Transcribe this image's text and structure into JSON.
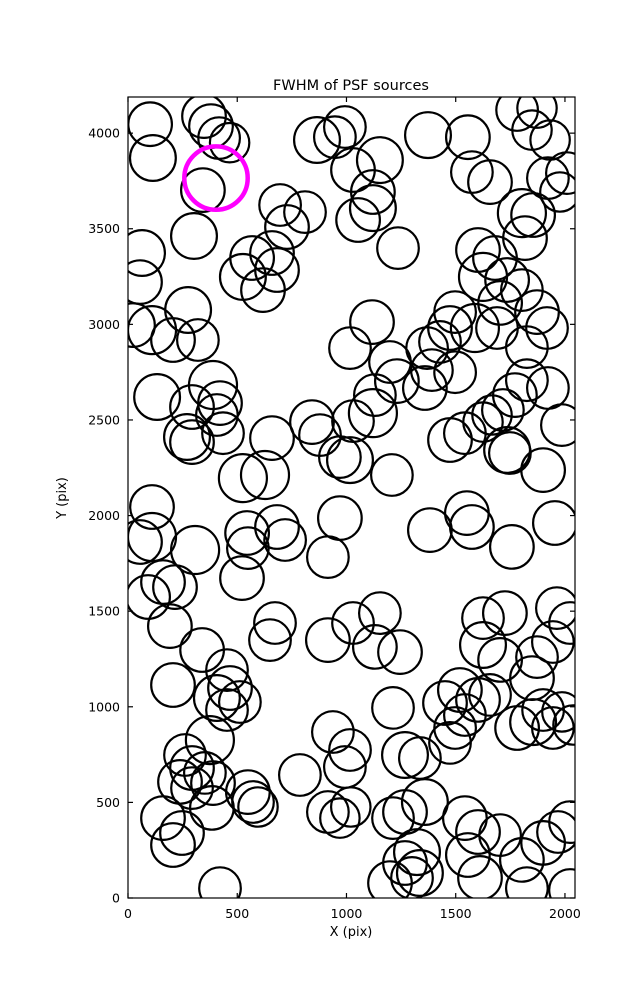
{
  "figure": {
    "background": "#ffffff",
    "title": "FWHM of PSF sources"
  },
  "chart_data": {
    "type": "scatter",
    "marker": "open-circle",
    "title": "FWHM of PSF sources",
    "xlabel": "X (pix)",
    "ylabel": "Y (pix)",
    "xlim": [
      0,
      2046
    ],
    "ylim": [
      0,
      4189
    ],
    "xticks": [
      0,
      500,
      1000,
      1500,
      2000
    ],
    "yticks": [
      0,
      500,
      1000,
      1500,
      2000,
      2500,
      3000,
      3500,
      4000
    ],
    "grid": false,
    "legend": "none",
    "circle_color": "#000000",
    "highlight_color": "#ff00ff",
    "note": "each point is [x_pix, y_pix, radius_in_x_units]; open circles sized by source FWHM",
    "highlight": {
      "x": 403,
      "y": 3765,
      "r": 145,
      "color": "#ff00ff"
    },
    "points": [
      [
        101,
        4047,
        100
      ],
      [
        114,
        3870,
        105
      ],
      [
        348,
        4089,
        100
      ],
      [
        380,
        4037,
        100
      ],
      [
        417,
        3974,
        95
      ],
      [
        465,
        3950,
        90
      ],
      [
        343,
        3702,
        100
      ],
      [
        302,
        3462,
        105
      ],
      [
        64,
        3373,
        105
      ],
      [
        55,
        3221,
        100
      ],
      [
        275,
        3075,
        105
      ],
      [
        110,
        2970,
        110
      ],
      [
        23,
        2996,
        100
      ],
      [
        206,
        2918,
        100
      ],
      [
        320,
        2918,
        95
      ],
      [
        526,
        3248,
        105
      ],
      [
        568,
        3347,
        100
      ],
      [
        659,
        3373,
        100
      ],
      [
        682,
        3284,
        100
      ],
      [
        618,
        3179,
        100
      ],
      [
        696,
        3624,
        95
      ],
      [
        728,
        3509,
        100
      ],
      [
        810,
        3587,
        95
      ],
      [
        865,
        3964,
        105
      ],
      [
        947,
        3979,
        95
      ],
      [
        993,
        4032,
        95
      ],
      [
        1030,
        3807,
        100
      ],
      [
        1053,
        3546,
        100
      ],
      [
        1373,
        3990,
        105
      ],
      [
        1556,
        3979,
        100
      ],
      [
        1153,
        3859,
        105
      ],
      [
        1121,
        3692,
        100
      ],
      [
        1121,
        3608,
        105
      ],
      [
        1574,
        3796,
        95
      ],
      [
        1657,
        3744,
        100
      ],
      [
        1781,
        4121,
        95
      ],
      [
        1872,
        4131,
        90
      ],
      [
        1849,
        4016,
        90
      ],
      [
        1932,
        3964,
        90
      ],
      [
        1922,
        3765,
        95
      ],
      [
        2009,
        3791,
        95
      ],
      [
        1977,
        3692,
        90
      ],
      [
        1803,
        3582,
        110
      ],
      [
        1854,
        3572,
        100
      ],
      [
        1817,
        3451,
        100
      ],
      [
        1236,
        3399,
        95
      ],
      [
        1602,
        3389,
        100
      ],
      [
        1680,
        3347,
        100
      ],
      [
        1625,
        3248,
        110
      ],
      [
        1735,
        3232,
        100
      ],
      [
        1703,
        3112,
        100
      ],
      [
        1803,
        3179,
        95
      ],
      [
        1497,
        3064,
        95
      ],
      [
        1474,
        2981,
        100
      ],
      [
        1588,
        2981,
        110
      ],
      [
        1428,
        2908,
        95
      ],
      [
        1369,
        2876,
        95
      ],
      [
        1689,
        2981,
        95
      ],
      [
        1117,
        3012,
        100
      ],
      [
        1016,
        2876,
        95
      ],
      [
        1199,
        2803,
        95
      ],
      [
        1872,
        3064,
        100
      ],
      [
        1918,
        2981,
        95
      ],
      [
        1826,
        2881,
        95
      ],
      [
        133,
        2620,
        105
      ],
      [
        389,
        2683,
        110
      ],
      [
        293,
        2568,
        100
      ],
      [
        421,
        2588,
        100
      ],
      [
        270,
        2411,
        105
      ],
      [
        293,
        2384,
        100
      ],
      [
        435,
        2431,
        95
      ],
      [
        407,
        2526,
        95
      ],
      [
        659,
        2405,
        100
      ],
      [
        842,
        2489,
        100
      ],
      [
        879,
        2421,
        95
      ],
      [
        1030,
        2494,
        95
      ],
      [
        970,
        2306,
        95
      ],
      [
        526,
        2196,
        110
      ],
      [
        627,
        2212,
        110
      ],
      [
        110,
        2045,
        100
      ],
      [
        110,
        1888,
        110
      ],
      [
        55,
        1862,
        100
      ],
      [
        307,
        1820,
        110
      ],
      [
        545,
        1909,
        100
      ],
      [
        549,
        1830,
        95
      ],
      [
        682,
        1940,
        100
      ],
      [
        719,
        1872,
        95
      ],
      [
        522,
        1673,
        100
      ],
      [
        160,
        1652,
        100
      ],
      [
        215,
        1626,
        100
      ],
      [
        92,
        1574,
        100
      ],
      [
        970,
        1987,
        100
      ],
      [
        915,
        1783,
        95
      ],
      [
        192,
        1422,
        100
      ],
      [
        673,
        1438,
        95
      ],
      [
        1030,
        1438,
        95
      ],
      [
        1231,
        2703,
        100
      ],
      [
        1391,
        2761,
        95
      ],
      [
        1497,
        2750,
        95
      ],
      [
        1130,
        2630,
        95
      ],
      [
        1121,
        2536,
        110
      ],
      [
        1359,
        2667,
        100
      ],
      [
        1771,
        2630,
        100
      ],
      [
        1826,
        2708,
        95
      ],
      [
        1922,
        2667,
        95
      ],
      [
        1716,
        2552,
        95
      ],
      [
        1666,
        2526,
        90
      ],
      [
        1474,
        2395,
        100
      ],
      [
        1542,
        2431,
        95
      ],
      [
        1625,
        2489,
        90
      ],
      [
        1735,
        2343,
        105
      ],
      [
        1748,
        2327,
        95
      ],
      [
        1900,
        2238,
        100
      ],
      [
        1986,
        2473,
        95
      ],
      [
        1016,
        2290,
        105
      ],
      [
        1208,
        2212,
        95
      ],
      [
        1382,
        1924,
        100
      ],
      [
        1551,
        2013,
        100
      ],
      [
        1574,
        1940,
        100
      ],
      [
        1757,
        1836,
        100
      ],
      [
        1954,
        1961,
        100
      ],
      [
        1153,
        1490,
        95
      ],
      [
        1625,
        1464,
        95
      ],
      [
        1725,
        1490,
        100
      ],
      [
        1963,
        1516,
        95
      ],
      [
        2023,
        1438,
        95
      ],
      [
        339,
        1297,
        100
      ],
      [
        206,
        1114,
        100
      ],
      [
        453,
        1192,
        95
      ],
      [
        407,
        1046,
        105
      ],
      [
        467,
        1098,
        100
      ],
      [
        512,
        1025,
        95
      ],
      [
        453,
        983,
        95
      ],
      [
        650,
        1349,
        95
      ],
      [
        915,
        1349,
        100
      ],
      [
        375,
        826,
        110
      ],
      [
        261,
        748,
        95
      ],
      [
        293,
        680,
        100
      ],
      [
        352,
        654,
        95
      ],
      [
        238,
        607,
        100
      ],
      [
        293,
        575,
        95
      ],
      [
        389,
        601,
        100
      ],
      [
        384,
        471,
        100
      ],
      [
        160,
        418,
        100
      ],
      [
        247,
        340,
        100
      ],
      [
        206,
        277,
        100
      ],
      [
        549,
        554,
        100
      ],
      [
        572,
        502,
        95
      ],
      [
        595,
        476,
        90
      ],
      [
        787,
        643,
        95
      ],
      [
        938,
        868,
        95
      ],
      [
        1016,
        774,
        95
      ],
      [
        993,
        685,
        95
      ],
      [
        915,
        450,
        95
      ],
      [
        970,
        418,
        90
      ],
      [
        1020,
        476,
        90
      ],
      [
        421,
        52,
        95
      ],
      [
        1130,
        1313,
        100
      ],
      [
        1245,
        1286,
        100
      ],
      [
        1625,
        1323,
        105
      ],
      [
        1703,
        1245,
        100
      ],
      [
        1872,
        1260,
        95
      ],
      [
        1945,
        1339,
        95
      ],
      [
        1849,
        1150,
        100
      ],
      [
        1213,
        994,
        95
      ],
      [
        1451,
        1020,
        100
      ],
      [
        1519,
        1088,
        100
      ],
      [
        1602,
        1036,
        100
      ],
      [
        1657,
        1062,
        95
      ],
      [
        1542,
        957,
        95
      ],
      [
        1497,
        889,
        95
      ],
      [
        1474,
        811,
        95
      ],
      [
        1781,
        889,
        100
      ],
      [
        1854,
        920,
        105
      ],
      [
        1900,
        983,
        95
      ],
      [
        1945,
        889,
        95
      ],
      [
        1986,
        973,
        90
      ],
      [
        2037,
        905,
        90
      ],
      [
        1268,
        748,
        105
      ],
      [
        1336,
        732,
        95
      ],
      [
        1359,
        502,
        105
      ],
      [
        1268,
        450,
        100
      ],
      [
        1213,
        418,
        95
      ],
      [
        1542,
        418,
        100
      ],
      [
        1602,
        345,
        100
      ],
      [
        1703,
        329,
        95
      ],
      [
        1556,
        225,
        100
      ],
      [
        1323,
        240,
        105
      ],
      [
        1268,
        183,
        100
      ],
      [
        1336,
        131,
        105
      ],
      [
        1300,
        105,
        95
      ],
      [
        1199,
        78,
        100
      ],
      [
        1611,
        105,
        100
      ],
      [
        1803,
        199,
        100
      ],
      [
        1900,
        288,
        100
      ],
      [
        1968,
        345,
        95
      ],
      [
        2023,
        397,
        95
      ],
      [
        1826,
        52,
        95
      ],
      [
        2023,
        42,
        95
      ]
    ]
  }
}
